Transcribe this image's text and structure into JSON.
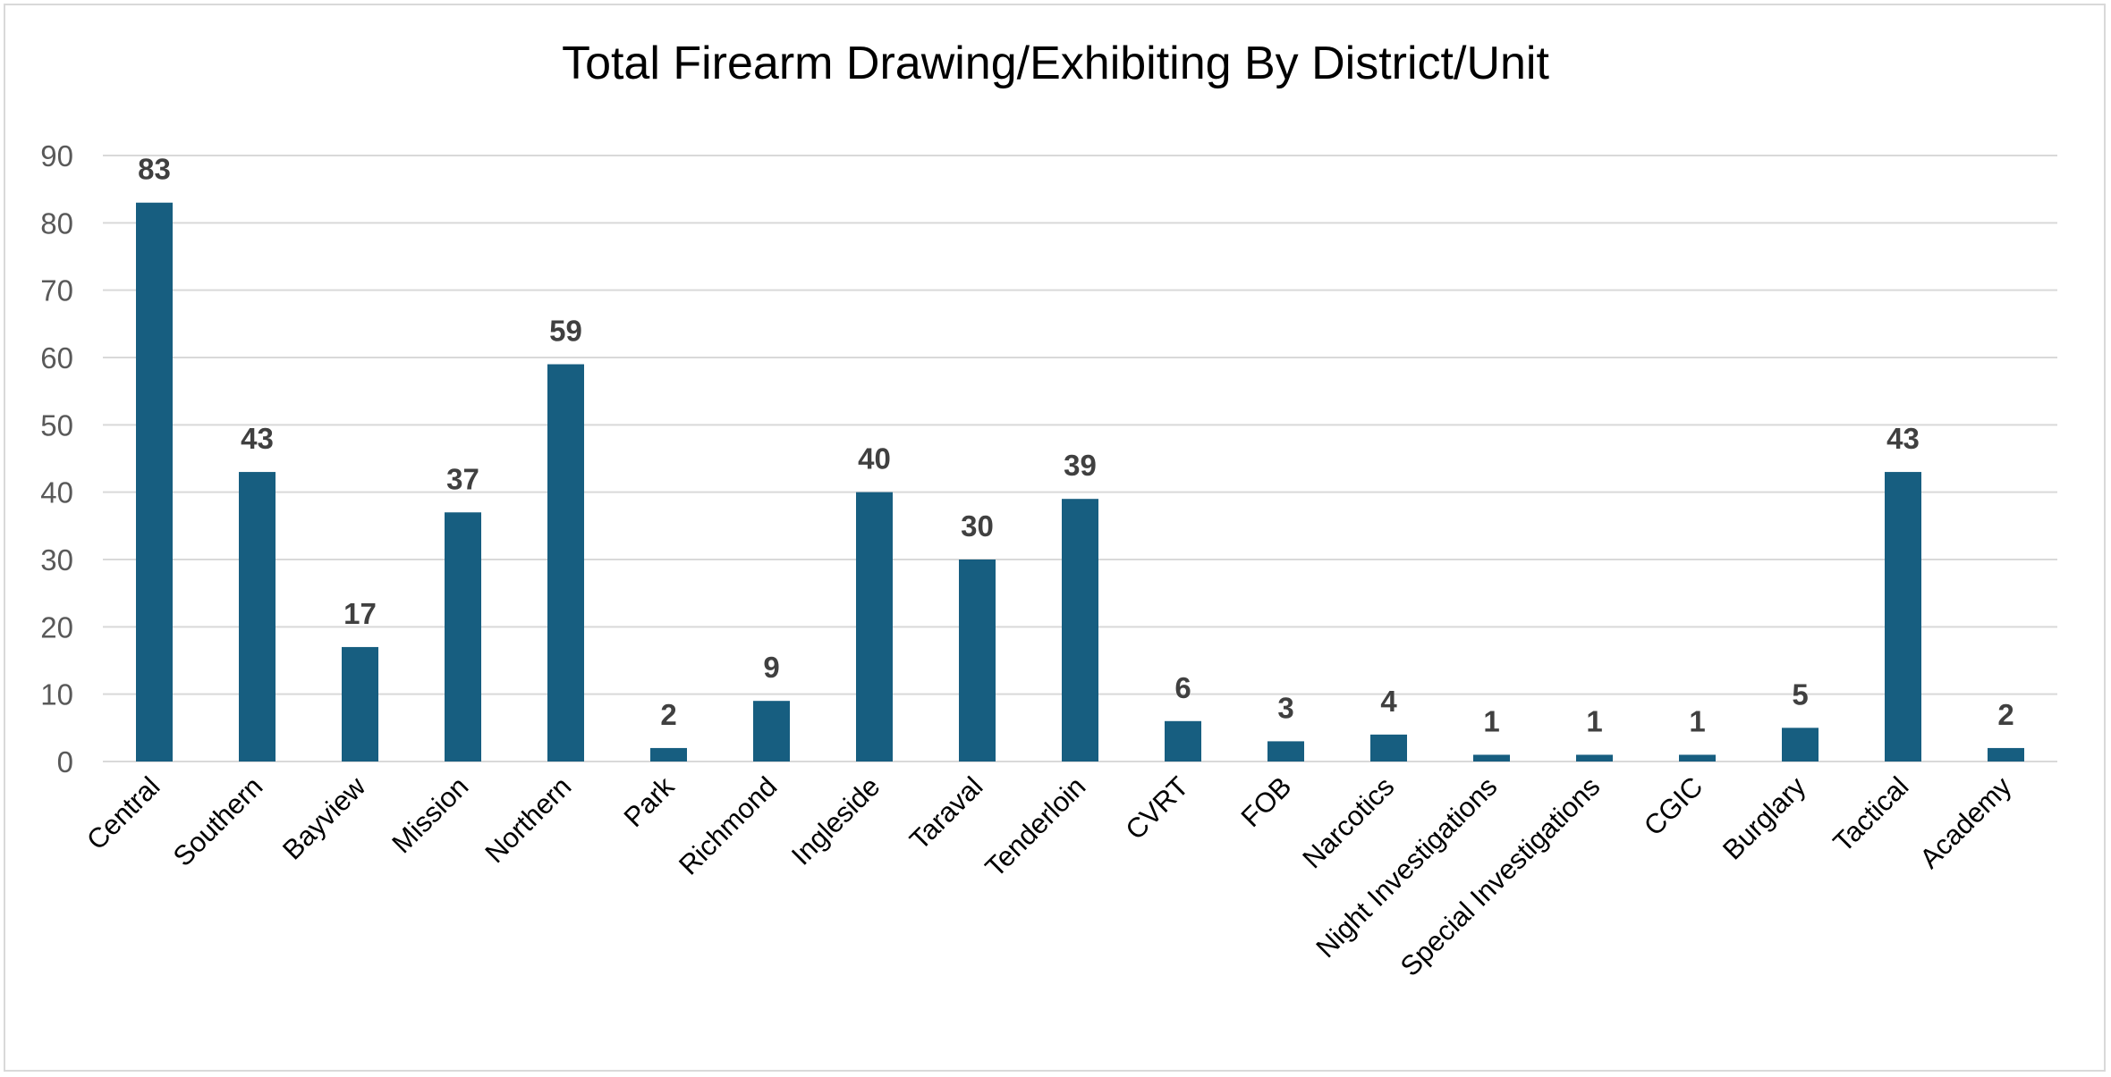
{
  "chart_data": {
    "type": "bar",
    "title": "Total Firearm Drawing/Exhibiting By District/Unit",
    "xlabel": "",
    "ylabel": "",
    "ylim": [
      0,
      90
    ],
    "yticks": [
      0,
      10,
      20,
      30,
      40,
      50,
      60,
      70,
      80,
      90
    ],
    "grid": true,
    "legend": "none",
    "bar_color": "#175E80",
    "categories": [
      "Central",
      "Southern",
      "Bayview",
      "Mission",
      "Northern",
      "Park",
      "Richmond",
      "Ingleside",
      "Taraval",
      "Tenderloin",
      "CVRT",
      "FOB",
      "Narcotics",
      "Night Investigations",
      "Special Investigations",
      "CGIC",
      "Burglary",
      "Tactical",
      "Academy"
    ],
    "values": [
      83,
      43,
      17,
      37,
      59,
      2,
      9,
      40,
      30,
      39,
      6,
      3,
      4,
      1,
      1,
      1,
      5,
      43,
      2
    ]
  }
}
